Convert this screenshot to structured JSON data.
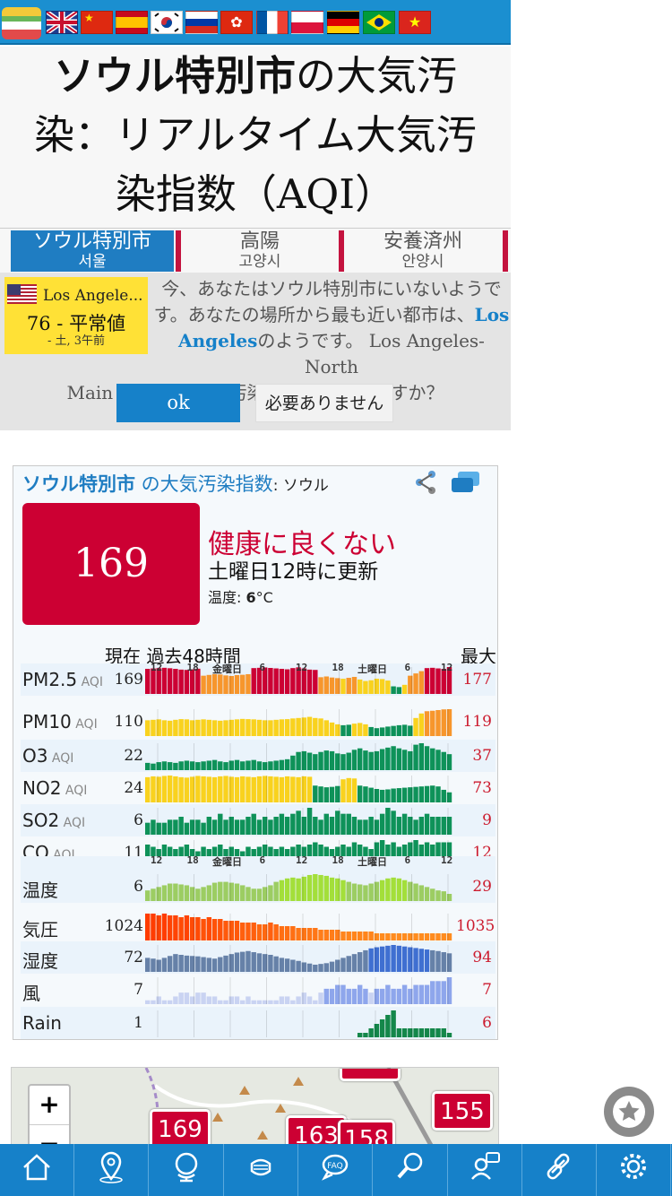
{
  "flags": [
    "gb-flag",
    "cn-flag",
    "es-flag",
    "kr-flag",
    "ru-flag",
    "hk-flag",
    "fr-flag",
    "pl-flag",
    "de-flag",
    "br-flag",
    "vn-flag"
  ],
  "title": {
    "city": "ソウル特別市",
    "rest_line1": "の大気汚",
    "line2": "染：リアルタイム大気汚",
    "line3": "染指数（AQI）"
  },
  "tabs": [
    {
      "name": "ソウル特別市",
      "sub": "서울"
    },
    {
      "name": "高陽",
      "sub": "고양시"
    },
    {
      "name": "安養済州",
      "sub": "안양시"
    }
  ],
  "nearby": {
    "city": "Los Angele...",
    "aqi_text": "76 - 平常値",
    "time": "- 土, 3午前"
  },
  "notice": {
    "line1": "今、あなたはソウル特別市にいないようで",
    "line2a": "す。あなたの場所から最も近い都市は、",
    "link1": "Los",
    "link2": "Angeles",
    "line3": "のようです。 Los Angeles-North",
    "line4": "Main Streetの大気汚染指数を表示しますか？",
    "ok": "ok",
    "no": "必要ありません"
  },
  "card": {
    "city": "ソウル特別市",
    "label": " の大気汚染指数",
    "station": ": ソウル",
    "aqi": "169",
    "status": "健康に良くない",
    "updated": "土曜日12時に更新",
    "temp_label": "温度: ",
    "temp_value": "6",
    "temp_unit": "°C",
    "hdr_now": "現在",
    "hdr_past": "過去48時間",
    "hdr_max": "最大"
  },
  "ticks": [
    "12",
    "18",
    "金曜日",
    "6",
    "12",
    "18",
    "土曜日",
    "6",
    "12"
  ],
  "colors": {
    "hazard": "#cc0033",
    "unhealthy_sens": "#f7962c",
    "moderate": "#f9d21e",
    "good": "#0e9259",
    "accent": "#1681c9"
  },
  "rows": [
    {
      "name": "PM2.5",
      "aqi": "AQI",
      "cur": "169",
      "max": "177",
      "kind": "aqi",
      "series": [
        165,
        168,
        170,
        172,
        169,
        165,
        160,
        158,
        162,
        166,
        120,
        125,
        130,
        128,
        122,
        118,
        124,
        126,
        130,
        170,
        172,
        174,
        171,
        168,
        165,
        162,
        170,
        175,
        168,
        160,
        158,
        110,
        115,
        108,
        104,
        100,
        106,
        112,
        95,
        85,
        90,
        100,
        98,
        88,
        50,
        45,
        60,
        120,
        135,
        150,
        170,
        172,
        168,
        165,
        177
      ]
    },
    {
      "name": "PM10",
      "aqi": "AQI",
      "cur": "110",
      "max": "119",
      "kind": "aqi",
      "series": [
        70,
        72,
        74,
        70,
        68,
        72,
        75,
        74,
        70,
        72,
        74,
        72,
        70,
        68,
        70,
        72,
        74,
        76,
        75,
        74,
        72,
        70,
        70,
        72,
        74,
        75,
        78,
        80,
        82,
        85,
        80,
        78,
        70,
        60,
        52,
        48,
        50,
        55,
        58,
        52,
        40,
        35,
        38,
        42,
        45,
        48,
        50,
        46,
        80,
        100,
        110,
        112,
        115,
        118,
        119
      ]
    },
    {
      "name": "O3",
      "aqi": "AQI",
      "cur": "22",
      "max": "37",
      "kind": "aqi",
      "series": [
        10,
        9,
        11,
        12,
        11,
        10,
        12,
        13,
        12,
        11,
        12,
        13,
        14,
        12,
        11,
        13,
        14,
        12,
        13,
        14,
        12,
        11,
        12,
        13,
        14,
        15,
        20,
        25,
        26,
        24,
        22,
        25,
        27,
        26,
        23,
        22,
        24,
        28,
        30,
        27,
        25,
        26,
        29,
        31,
        33,
        30,
        28,
        26,
        35,
        37,
        33,
        30,
        28,
        25,
        22
      ]
    },
    {
      "name": "NO2",
      "aqi": "AQI",
      "cur": "24",
      "max": "73",
      "kind": "aqi",
      "series": [
        60,
        62,
        61,
        63,
        64,
        62,
        60,
        59,
        61,
        63,
        62,
        61,
        60,
        62,
        63,
        61,
        60,
        62,
        61,
        60,
        62,
        63,
        62,
        61,
        60,
        62,
        61,
        60,
        62,
        61,
        40,
        38,
        36,
        37,
        39,
        55,
        58,
        57,
        40,
        38,
        35,
        32,
        30,
        31,
        33,
        34,
        35,
        36,
        37,
        38,
        39,
        40,
        38,
        30,
        24
      ]
    },
    {
      "name": "SO2",
      "aqi": "AQI",
      "cur": "6",
      "max": "9",
      "kind": "aqi",
      "series": [
        4,
        5,
        4,
        4,
        5,
        5,
        6,
        4,
        5,
        5,
        4,
        6,
        5,
        7,
        5,
        6,
        5,
        5,
        6,
        7,
        5,
        6,
        5,
        6,
        7,
        6,
        7,
        8,
        6,
        9,
        6,
        5,
        7,
        6,
        8,
        7,
        7,
        6,
        5,
        5,
        6,
        5,
        7,
        9,
        8,
        6,
        7,
        6,
        5,
        6,
        7,
        6,
        6,
        6,
        6
      ]
    },
    {
      "name": "CO",
      "aqi": "AQI",
      "cur": "11",
      "max": "12",
      "kind": "aqi",
      "series": [
        10,
        9,
        8,
        10,
        9,
        8,
        9,
        10,
        8,
        7,
        9,
        8,
        9,
        10,
        8,
        9,
        8,
        7,
        9,
        8,
        9,
        10,
        9,
        8,
        9,
        8,
        9,
        10,
        9,
        10,
        11,
        10,
        9,
        8,
        9,
        10,
        9,
        11,
        10,
        9,
        8,
        11,
        12,
        10,
        11,
        9,
        10,
        11,
        12,
        10,
        11,
        10,
        11,
        11,
        11
      ]
    },
    {
      "name": "温度",
      "aqi": "",
      "cur": "6",
      "max": "29",
      "kind": "temp",
      "series": [
        10,
        12,
        14,
        16,
        18,
        18,
        17,
        16,
        14,
        12,
        14,
        16,
        19,
        20,
        20,
        19,
        18,
        16,
        14,
        12,
        12,
        14,
        16,
        20,
        22,
        24,
        25,
        24,
        26,
        28,
        29,
        28,
        27,
        25,
        24,
        22,
        20,
        18,
        17,
        16,
        18,
        20,
        22,
        24,
        25,
        24,
        22,
        20,
        18,
        16,
        14,
        12,
        10,
        9,
        6
      ]
    },
    {
      "name": "気圧",
      "aqi": "",
      "cur": "1024",
      "max": "1035",
      "kind": "press",
      "series": [
        1035,
        1035,
        1034,
        1035,
        1034,
        1034,
        1033,
        1034,
        1033,
        1033,
        1032,
        1033,
        1032,
        1032,
        1031,
        1031,
        1031,
        1030,
        1030,
        1030,
        1029,
        1029,
        1030,
        1029,
        1028,
        1028,
        1028,
        1027,
        1027,
        1027,
        1027,
        1026,
        1026,
        1026,
        1026,
        1025,
        1025,
        1025,
        1025,
        1025,
        1025,
        1024,
        1024,
        1024,
        1024,
        1024,
        1024,
        1024,
        1024,
        1024,
        1024,
        1024,
        1024,
        1024,
        1024
      ]
    },
    {
      "name": "湿度",
      "aqi": "",
      "cur": "72",
      "max": "94",
      "kind": "hum",
      "series": [
        60,
        58,
        55,
        60,
        65,
        70,
        68,
        66,
        65,
        64,
        62,
        60,
        58,
        62,
        66,
        70,
        74,
        76,
        78,
        75,
        72,
        70,
        68,
        64,
        60,
        58,
        55,
        52,
        48,
        45,
        42,
        44,
        46,
        50,
        55,
        60,
        65,
        70,
        75,
        80,
        85,
        88,
        90,
        92,
        94,
        92,
        90,
        88,
        86,
        84,
        82,
        80,
        78,
        75,
        72
      ]
    },
    {
      "name": "風",
      "aqi": "",
      "cur": "7",
      "max": "7",
      "kind": "wind",
      "series": [
        1,
        1,
        2,
        1,
        1,
        2,
        3,
        3,
        2,
        3,
        3,
        2,
        2,
        1,
        1,
        2,
        2,
        1,
        2,
        1,
        1,
        1,
        1,
        1,
        2,
        2,
        1,
        2,
        3,
        2,
        1,
        3,
        4,
        4,
        5,
        5,
        4,
        4,
        5,
        4,
        3,
        4,
        4,
        5,
        4,
        4,
        5,
        4,
        5,
        5,
        5,
        6,
        6,
        6,
        7
      ]
    },
    {
      "name": "Rain",
      "aqi": "",
      "cur": "1",
      "max": "6",
      "kind": "rain",
      "series": [
        0,
        0,
        0,
        0,
        0,
        0,
        0,
        0,
        0,
        0,
        0,
        0,
        0,
        0,
        0,
        0,
        0,
        0,
        0,
        0,
        0,
        0,
        0,
        0,
        0,
        0,
        0,
        0,
        0,
        0,
        0,
        0,
        0,
        0,
        0,
        0,
        0,
        0,
        1,
        1,
        2,
        3,
        4,
        5,
        6,
        2,
        2,
        2,
        2,
        2,
        2,
        2,
        2,
        2,
        1
      ]
    }
  ],
  "map": {
    "zoom_in": "+",
    "zoom_out": "−",
    "markers": [
      "169",
      "163",
      "158",
      "155"
    ]
  },
  "bottom_icons": [
    "home-icon",
    "map-pin-icon",
    "globe-icon",
    "mask-icon",
    "faq-icon",
    "search-icon",
    "support-icon",
    "link-icon",
    "gear-icon"
  ]
}
